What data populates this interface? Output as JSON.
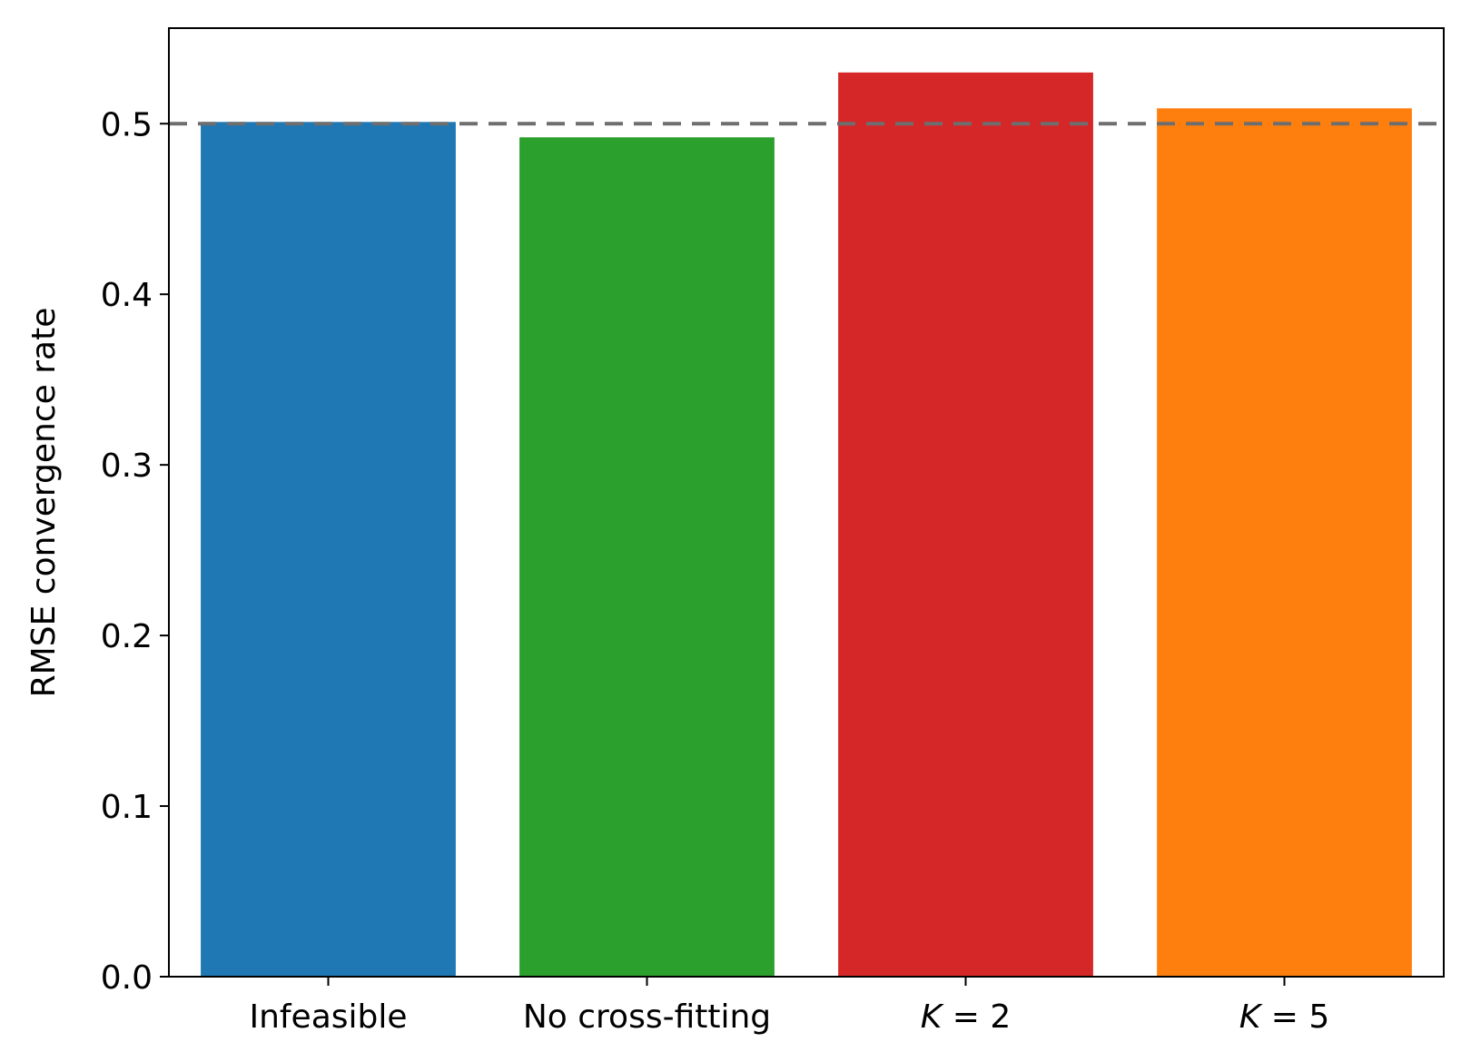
{
  "chart_data": {
    "type": "bar",
    "categories": [
      "Infeasible",
      "No cross-fitting",
      "K = 2",
      "K = 5"
    ],
    "values": [
      0.501,
      0.492,
      0.53,
      0.509
    ],
    "colors": [
      "#1f77b4",
      "#2ca02c",
      "#d62728",
      "#ff7f0e"
    ],
    "title": "",
    "xlabel": "",
    "ylabel": "RMSE convergence rate",
    "ylim": [
      0,
      0.556
    ],
    "yticks": [
      0.0,
      0.1,
      0.2,
      0.3,
      0.4,
      0.5
    ],
    "ytick_labels": [
      "0.0",
      "0.1",
      "0.2",
      "0.3",
      "0.4",
      "0.5"
    ],
    "reference_line": {
      "y": 0.5,
      "style": "dashed",
      "color": "#6e6e6e"
    },
    "grid": false,
    "legend": "none"
  }
}
